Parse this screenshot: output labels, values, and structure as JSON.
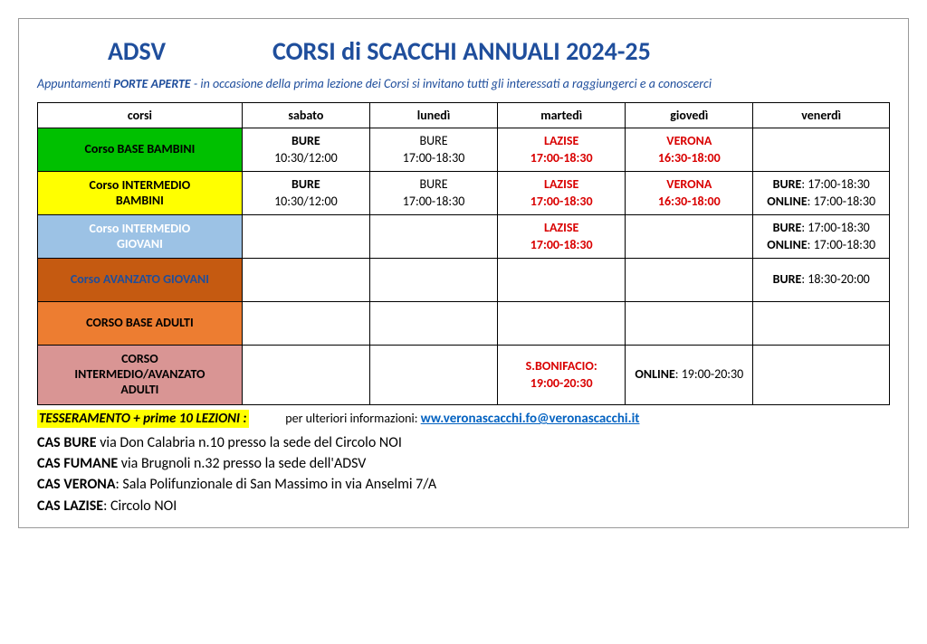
{
  "header": {
    "brand": "ADSV",
    "title": "CORSI di SCACCHI ANNUALI 2024-25"
  },
  "subtitle": {
    "prefix": "Appuntamenti ",
    "strong": "PORTE APERTE",
    "rest": " - in occasione della prima lezione dei Corsi si invitano tutti gli interessati a raggiungerci e a conoscerci"
  },
  "columns": [
    "corsi",
    "sabato",
    "lunedì",
    "martedì",
    "giovedì",
    "venerdì"
  ],
  "col_widths": [
    "24%",
    "15%",
    "15%",
    "15%",
    "15%",
    "16%"
  ],
  "row_colors": {
    "base_bambini": "#00c000",
    "intermedio_bambini": "#ffff00",
    "intermedio_giovani": "#9cc2e5",
    "avanzato_giovani": "#c55a11",
    "base_adulti": "#ed7d31",
    "intermedio_avanzato_adulti": "#d99594"
  },
  "rows": [
    {
      "key": "base_bambini",
      "name": "Corso BASE BAMBINI",
      "cells": [
        {
          "lines": [
            {
              "text": "BURE",
              "bold": true
            },
            {
              "text": "10:30/12:00"
            }
          ]
        },
        {
          "lines": [
            {
              "text": "BURE"
            },
            {
              "text": "17:00-18:30"
            }
          ]
        },
        {
          "lines": [
            {
              "text": "LAZISE",
              "red": true
            },
            {
              "text": "17:00-18:30",
              "red": true
            }
          ]
        },
        {
          "lines": [
            {
              "text": "VERONA",
              "red": true
            },
            {
              "text": "16:30-18:00",
              "red": true
            }
          ]
        },
        {
          "lines": []
        }
      ]
    },
    {
      "key": "intermedio_bambini",
      "name": "Corso INTERMEDIO BAMBINI",
      "cells": [
        {
          "lines": [
            {
              "text": "BURE",
              "bold": true
            },
            {
              "text": "10:30/12:00"
            }
          ]
        },
        {
          "lines": [
            {
              "text": "BURE"
            },
            {
              "text": "17:00-18:30"
            }
          ]
        },
        {
          "lines": [
            {
              "text": "LAZISE",
              "red": true
            },
            {
              "text": "17:00-18:30",
              "red": true
            }
          ]
        },
        {
          "lines": [
            {
              "text": "VERONA",
              "red": true
            },
            {
              "text": "16:30-18:00",
              "red": true
            }
          ]
        },
        {
          "lines": [
            {
              "html": "<b>BURE</b>: 17:00-18:30"
            },
            {
              "html": "<b>ONLINE</b>: 17:00-18:30"
            }
          ]
        }
      ]
    },
    {
      "key": "intermedio_giovani",
      "name": "Corso INTERMEDIO GIOVANI",
      "name_color": "#ffffff",
      "cells": [
        {
          "lines": []
        },
        {
          "lines": []
        },
        {
          "lines": [
            {
              "text": "LAZISE",
              "red": true
            },
            {
              "text": "17:00-18:30",
              "red": true
            }
          ]
        },
        {
          "lines": []
        },
        {
          "lines": [
            {
              "html": "<b>BURE</b>: 17:00-18:30"
            },
            {
              "html": "<b>ONLINE</b>: 17:00-18:30"
            }
          ]
        }
      ]
    },
    {
      "key": "avanzato_giovani",
      "name": "Corso AVANZATO GIOVANI",
      "name_color": "#1f4e9c",
      "cells": [
        {
          "lines": []
        },
        {
          "lines": []
        },
        {
          "lines": []
        },
        {
          "lines": []
        },
        {
          "lines": [
            {
              "html": "<b>BURE</b>: 18:30-20:00"
            }
          ]
        }
      ]
    },
    {
      "key": "base_adulti",
      "name": "CORSO BASE ADULTI",
      "cells": [
        {
          "lines": []
        },
        {
          "lines": []
        },
        {
          "lines": []
        },
        {
          "lines": []
        },
        {
          "lines": []
        }
      ]
    },
    {
      "key": "intermedio_avanzato_adulti",
      "name": "CORSO INTERMEDIO/AVANZATO ADULTI",
      "cells": [
        {
          "lines": []
        },
        {
          "lines": []
        },
        {
          "lines": [
            {
              "text": "S.BONIFACIO:",
              "red": true
            },
            {
              "text": "19:00-20:30",
              "red": true
            }
          ]
        },
        {
          "lines": [
            {
              "html": "<b>ONLINE</b>: 19:00-20:30"
            }
          ]
        },
        {
          "lines": []
        }
      ]
    }
  ],
  "info": {
    "label": "TESSERAMENTO + prime 10 LEZIONI :",
    "text": "per ulteriori informazioni: ",
    "link_text": "ww.veronascacchi.fo@veronascacchi.it",
    "link_href": "mailto:fo@veronascacchi.it"
  },
  "addresses": [
    {
      "b": "CAS BURE",
      "rest": " via Don Calabria n.10 presso la sede del Circolo NOI"
    },
    {
      "b": "CAS FUMANE",
      "rest": " via Brugnoli n.32 presso la sede dell'ADSV"
    },
    {
      "b": "CAS VERONA",
      "rest": ": Sala Polifunzionale di San Massimo in via Anselmi 7/A"
    },
    {
      "b": "CAS LAZISE",
      "rest": ": Circolo NOI"
    }
  ]
}
